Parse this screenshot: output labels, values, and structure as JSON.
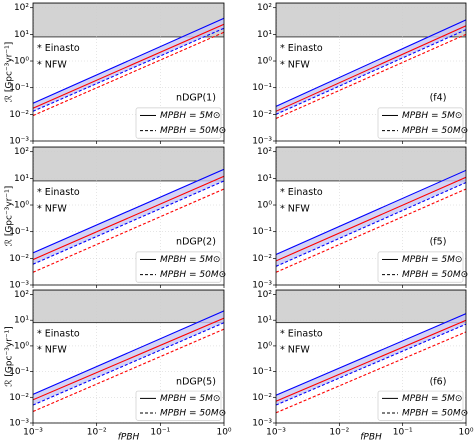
{
  "chart_data": [
    {
      "type": "line",
      "label": "nDGP(1)",
      "ylabel": "ℛ [Gpc⁻³yr⁻¹]",
      "log": true,
      "grid": true,
      "xlim": [
        0.001,
        1
      ],
      "ylim": [
        0.001,
        150
      ],
      "yticks": [
        {
          "value": 0.001,
          "label": "10⁻³"
        },
        {
          "value": 0.01,
          "label": "10⁻²"
        },
        {
          "value": 0.1,
          "label": "10⁻¹"
        },
        {
          "value": 1,
          "label": "10⁰"
        },
        {
          "value": 10,
          "label": "10¹"
        },
        {
          "value": 100,
          "label": "10²"
        }
      ],
      "band": {
        "range": [
          8,
          150
        ],
        "color": "#d3d3d3"
      },
      "annotations": [
        {
          "text": "* Einasto",
          "color": "#0000ff"
        },
        {
          "text": "* NFW",
          "color": "#ff0000"
        }
      ],
      "legend": [
        {
          "label": "MPBH = 5M⊙",
          "style": "solid"
        },
        {
          "label": "MPBH = 50M⊙",
          "style": "dashed"
        }
      ],
      "shade": {
        "series": [
          0,
          2
        ],
        "color": "#c8c8f4"
      },
      "x": [
        0.001,
        1
      ],
      "series": [
        {
          "color": "#0000ff",
          "style": "solid",
          "values": [
            0.026,
            40
          ]
        },
        {
          "color": "#ff0000",
          "style": "solid",
          "values": [
            0.017,
            24
          ]
        },
        {
          "color": "#0000ff",
          "style": "dashed",
          "values": [
            0.013,
            17
          ]
        },
        {
          "color": "#ff0000",
          "style": "dashed",
          "values": [
            0.009,
            12
          ]
        }
      ]
    },
    {
      "type": "line",
      "label": "(f4)",
      "log": true,
      "grid": true,
      "xlim": [
        0.001,
        1
      ],
      "ylim": [
        0.001,
        150
      ],
      "yticks": [
        {
          "value": 0.001,
          "label": "10⁻³"
        },
        {
          "value": 0.01,
          "label": "10⁻²"
        },
        {
          "value": 0.1,
          "label": "10⁻¹"
        },
        {
          "value": 1,
          "label": "10⁰"
        },
        {
          "value": 10,
          "label": "10¹"
        },
        {
          "value": 100,
          "label": "10²"
        }
      ],
      "band": {
        "range": [
          8,
          150
        ],
        "color": "#d3d3d3"
      },
      "annotations": [
        {
          "text": "* Einasto",
          "color": "#0000ff"
        },
        {
          "text": "* NFW",
          "color": "#ff0000"
        }
      ],
      "legend": [
        {
          "label": "MPBH = 5M⊙",
          "style": "solid"
        },
        {
          "label": "MPBH = 50M⊙",
          "style": "dashed"
        }
      ],
      "shade": {
        "series": [
          0,
          2
        ],
        "color": "#c8c8f4"
      },
      "x": [
        0.001,
        1
      ],
      "series": [
        {
          "color": "#0000ff",
          "style": "solid",
          "values": [
            0.02,
            35
          ]
        },
        {
          "color": "#ff0000",
          "style": "solid",
          "values": [
            0.013,
            21
          ]
        },
        {
          "color": "#0000ff",
          "style": "dashed",
          "values": [
            0.01,
            15
          ]
        },
        {
          "color": "#ff0000",
          "style": "dashed",
          "values": [
            0.007,
            10
          ]
        }
      ]
    },
    {
      "type": "line",
      "label": "nDGP(2)",
      "ylabel": "ℛ [Gpc⁻³yr⁻¹]",
      "log": true,
      "grid": true,
      "xlim": [
        0.001,
        1
      ],
      "ylim": [
        0.001,
        150
      ],
      "yticks": [
        {
          "value": 0.001,
          "label": "10⁻³"
        },
        {
          "value": 0.01,
          "label": "10⁻²"
        },
        {
          "value": 0.1,
          "label": "10⁻¹"
        },
        {
          "value": 1,
          "label": "10⁰"
        },
        {
          "value": 10,
          "label": "10¹"
        },
        {
          "value": 100,
          "label": "10²"
        }
      ],
      "band": {
        "range": [
          8,
          150
        ],
        "color": "#d3d3d3"
      },
      "annotations": [
        {
          "text": "* Einasto",
          "color": "#0000ff"
        },
        {
          "text": "* NFW",
          "color": "#ff0000"
        }
      ],
      "legend": [
        {
          "label": "MPBH = 5M⊙",
          "style": "solid"
        },
        {
          "label": "MPBH = 50M⊙",
          "style": "dashed"
        }
      ],
      "shade": {
        "series": [
          0,
          2
        ],
        "color": "#c8c8f4"
      },
      "x": [
        0.001,
        1
      ],
      "series": [
        {
          "color": "#0000ff",
          "style": "solid",
          "values": [
            0.016,
            22
          ]
        },
        {
          "color": "#ff0000",
          "style": "solid",
          "values": [
            0.009,
            12
          ]
        },
        {
          "color": "#0000ff",
          "style": "dashed",
          "values": [
            0.006,
            8
          ]
        },
        {
          "color": "#ff0000",
          "style": "dashed",
          "values": [
            0.003,
            4
          ]
        }
      ]
    },
    {
      "type": "line",
      "label": "(f5)",
      "log": true,
      "grid": true,
      "xlim": [
        0.001,
        1
      ],
      "ylim": [
        0.001,
        150
      ],
      "yticks": [
        {
          "value": 0.001,
          "label": "10⁻³"
        },
        {
          "value": 0.01,
          "label": "10⁻²"
        },
        {
          "value": 0.1,
          "label": "10⁻¹"
        },
        {
          "value": 1,
          "label": "10⁰"
        },
        {
          "value": 10,
          "label": "10¹"
        },
        {
          "value": 100,
          "label": "10²"
        }
      ],
      "band": {
        "range": [
          8,
          150
        ],
        "color": "#d3d3d3"
      },
      "annotations": [
        {
          "text": "* Einasto",
          "color": "#0000ff"
        },
        {
          "text": "* NFW",
          "color": "#ff0000"
        }
      ],
      "legend": [
        {
          "label": "MPBH = 5M⊙",
          "style": "solid"
        },
        {
          "label": "MPBH = 50M⊙",
          "style": "dashed"
        }
      ],
      "shade": {
        "series": [
          0,
          2
        ],
        "color": "#c8c8f4"
      },
      "x": [
        0.001,
        1
      ],
      "series": [
        {
          "color": "#0000ff",
          "style": "solid",
          "values": [
            0.014,
            20
          ]
        },
        {
          "color": "#ff0000",
          "style": "solid",
          "values": [
            0.008,
            11
          ]
        },
        {
          "color": "#0000ff",
          "style": "dashed",
          "values": [
            0.005,
            7
          ]
        },
        {
          "color": "#ff0000",
          "style": "dashed",
          "values": [
            0.003,
            4
          ]
        }
      ]
    },
    {
      "type": "line",
      "label": "nDGP(5)",
      "ylabel": "ℛ [Gpc⁻³yr⁻¹]",
      "xlabel": "fPBH",
      "log": true,
      "grid": true,
      "xlim": [
        0.001,
        1
      ],
      "ylim": [
        0.001,
        150
      ],
      "xticks": [
        {
          "value": 0.001,
          "label": "10⁻³"
        },
        {
          "value": 0.01,
          "label": "10⁻²"
        },
        {
          "value": 0.1,
          "label": "10⁻¹"
        },
        {
          "value": 1,
          "label": "10⁰"
        }
      ],
      "yticks": [
        {
          "value": 0.001,
          "label": "10⁻³"
        },
        {
          "value": 0.01,
          "label": "10⁻²"
        },
        {
          "value": 0.1,
          "label": "10⁻¹"
        },
        {
          "value": 1,
          "label": "10⁰"
        },
        {
          "value": 10,
          "label": "10¹"
        },
        {
          "value": 100,
          "label": "10²"
        }
      ],
      "band": {
        "range": [
          8,
          150
        ],
        "color": "#d3d3d3"
      },
      "annotations": [
        {
          "text": "* Einasto",
          "color": "#0000ff"
        },
        {
          "text": "* NFW",
          "color": "#ff0000"
        }
      ],
      "legend": [
        {
          "label": "MPBH = 5M⊙",
          "style": "solid"
        },
        {
          "label": "MPBH = 50M⊙",
          "style": "dashed"
        }
      ],
      "shade": {
        "series": [
          0,
          2
        ],
        "color": "#c8c8f4"
      },
      "x": [
        0.001,
        1
      ],
      "series": [
        {
          "color": "#0000ff",
          "style": "solid",
          "values": [
            0.013,
            23
          ]
        },
        {
          "color": "#ff0000",
          "style": "solid",
          "values": [
            0.008,
            12
          ]
        },
        {
          "color": "#0000ff",
          "style": "dashed",
          "values": [
            0.005,
            8
          ]
        },
        {
          "color": "#ff0000",
          "style": "dashed",
          "values": [
            0.0028,
            4.5
          ]
        }
      ]
    },
    {
      "type": "line",
      "label": "(f6)",
      "xlabel": "fPBH",
      "log": true,
      "grid": true,
      "xlim": [
        0.001,
        1
      ],
      "ylim": [
        0.001,
        150
      ],
      "xticks": [
        {
          "value": 0.001,
          "label": "10⁻³"
        },
        {
          "value": 0.01,
          "label": "10⁻²"
        },
        {
          "value": 0.1,
          "label": "10⁻¹"
        },
        {
          "value": 1,
          "label": "10⁰"
        }
      ],
      "yticks": [
        {
          "value": 0.001,
          "label": "10⁻³"
        },
        {
          "value": 0.01,
          "label": "10⁻²"
        },
        {
          "value": 0.1,
          "label": "10⁻¹"
        },
        {
          "value": 1,
          "label": "10⁰"
        },
        {
          "value": 10,
          "label": "10¹"
        },
        {
          "value": 100,
          "label": "10²"
        }
      ],
      "band": {
        "range": [
          8,
          150
        ],
        "color": "#d3d3d3"
      },
      "annotations": [
        {
          "text": "* Einasto",
          "color": "#0000ff"
        },
        {
          "text": "* NFW",
          "color": "#ff0000"
        }
      ],
      "legend": [
        {
          "label": "MPBH = 5M⊙",
          "style": "solid"
        },
        {
          "label": "MPBH = 50M⊙",
          "style": "dashed"
        }
      ],
      "shade": {
        "series": [
          0,
          2
        ],
        "color": "#c8c8f4"
      },
      "x": [
        0.001,
        1
      ],
      "series": [
        {
          "color": "#0000ff",
          "style": "solid",
          "values": [
            0.012,
            18
          ]
        },
        {
          "color": "#ff0000",
          "style": "solid",
          "values": [
            0.007,
            10
          ]
        },
        {
          "color": "#0000ff",
          "style": "dashed",
          "values": [
            0.005,
            7
          ]
        },
        {
          "color": "#ff0000",
          "style": "dashed",
          "values": [
            0.0025,
            3.5
          ]
        }
      ]
    }
  ]
}
